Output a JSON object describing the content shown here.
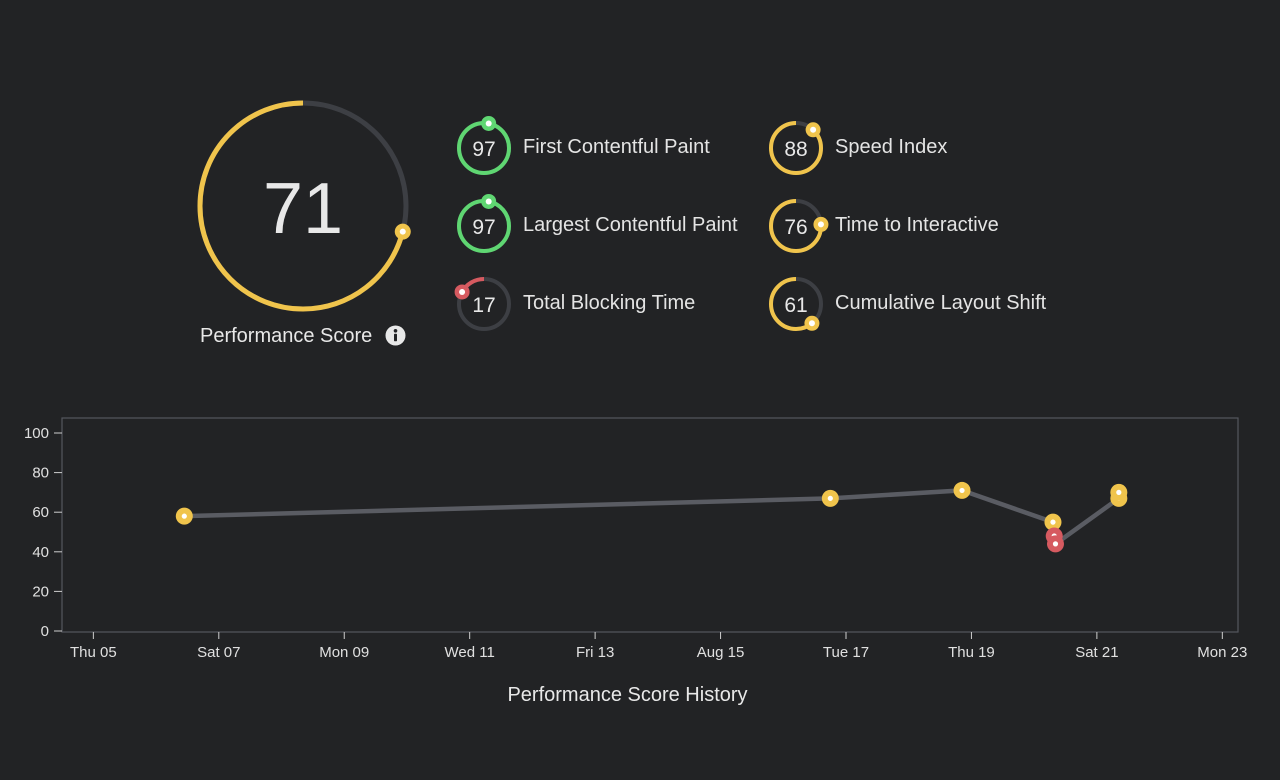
{
  "colors": {
    "background": "#222325",
    "good": "#5fd672",
    "average": "#f0c44c",
    "poor": "#d65a60",
    "track": "#3d3f44",
    "line": "#5a5c63"
  },
  "performance": {
    "score": "71",
    "score_value": 71,
    "label": "Performance Score",
    "info_icon": "info-icon"
  },
  "metrics": [
    {
      "key": "fcp",
      "score": "97",
      "value": 97,
      "label": "First Contentful Paint",
      "status": "good"
    },
    {
      "key": "lcp",
      "score": "97",
      "value": 97,
      "label": "Largest Contentful Paint",
      "status": "good"
    },
    {
      "key": "tbt",
      "score": "17",
      "value": 17,
      "label": "Total Blocking Time",
      "status": "poor"
    },
    {
      "key": "si",
      "score": "88",
      "value": 88,
      "label": "Speed Index",
      "status": "average"
    },
    {
      "key": "tti",
      "score": "76",
      "value": 76,
      "label": "Time to Interactive",
      "status": "average"
    },
    {
      "key": "cls",
      "score": "61",
      "value": 61,
      "label": "Cumulative Layout Shift",
      "status": "average"
    }
  ],
  "chart_title": "Performance Score History",
  "chart_data": {
    "type": "line",
    "title": "Performance Score History",
    "ylim": [
      0,
      100
    ],
    "yticks": [
      "0",
      "20",
      "40",
      "60",
      "80",
      "100"
    ],
    "xticks": [
      "Thu 05",
      "Sat 07",
      "Mon 09",
      "Wed 11",
      "Fri 13",
      "Aug 15",
      "Tue 17",
      "Thu 19",
      "Sat 21",
      "Mon 23"
    ],
    "x_range_days": [
      4.5,
      23.25
    ],
    "xtick_days": [
      5,
      7,
      9,
      11,
      13,
      15,
      17,
      19,
      21,
      23
    ],
    "points": [
      {
        "day": 6.45,
        "y": 58,
        "status": "average"
      },
      {
        "day": 16.75,
        "y": 67,
        "status": "average"
      },
      {
        "day": 18.85,
        "y": 71,
        "status": "average"
      },
      {
        "day": 20.3,
        "y": 55,
        "status": "average"
      },
      {
        "day": 20.32,
        "y": 48,
        "status": "poor"
      },
      {
        "day": 20.34,
        "y": 44,
        "status": "poor"
      },
      {
        "day": 21.35,
        "y": 67,
        "status": "average"
      },
      {
        "day": 21.35,
        "y": 70,
        "status": "average"
      }
    ],
    "line": [
      {
        "day": 6.45,
        "y": 58
      },
      {
        "day": 16.75,
        "y": 67
      },
      {
        "day": 18.85,
        "y": 71
      },
      {
        "day": 20.3,
        "y": 55
      },
      {
        "day": 20.34,
        "y": 44
      },
      {
        "day": 21.35,
        "y": 67
      }
    ],
    "grid": false,
    "legend": "none"
  }
}
